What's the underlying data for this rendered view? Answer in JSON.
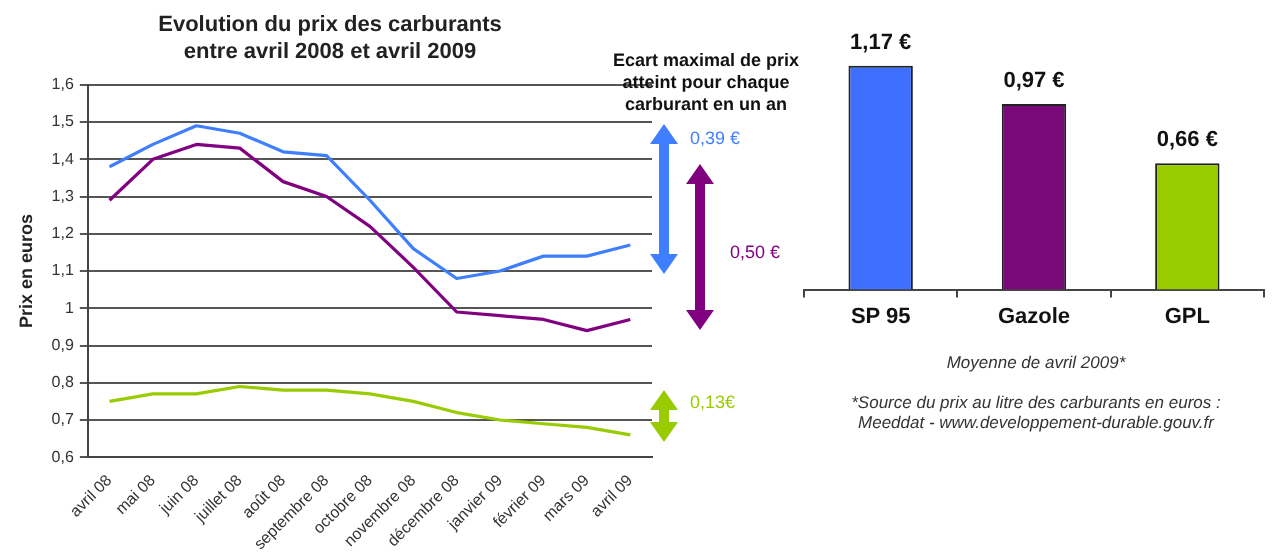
{
  "chart_data": [
    {
      "type": "line",
      "title": "Evolution du prix des carburants\nentre avril 2008 et avril 2009",
      "ylabel": "Prix en euros",
      "categories": [
        "avril 08",
        "mai 08",
        "juin 08",
        "juillet 08",
        "août 08",
        "septembre 08",
        "octobre 08",
        "novembre 08",
        "décembre 08",
        "janvier 09",
        "février 09",
        "mars 09",
        "avril 09"
      ],
      "series": [
        {
          "color": "#3f7fff",
          "values": [
            1.38,
            1.44,
            1.49,
            1.47,
            1.42,
            1.41,
            1.29,
            1.16,
            1.08,
            1.1,
            1.14,
            1.14,
            1.17
          ]
        },
        {
          "color": "#800080",
          "values": [
            1.29,
            1.4,
            1.44,
            1.43,
            1.34,
            1.3,
            1.22,
            1.11,
            0.99,
            0.98,
            0.97,
            0.94,
            0.97
          ]
        },
        {
          "color": "#99cc00",
          "values": [
            0.75,
            0.77,
            0.77,
            0.79,
            0.78,
            0.78,
            0.77,
            0.75,
            0.72,
            0.7,
            0.69,
            0.68,
            0.66
          ]
        }
      ],
      "ylim": [
        0.6,
        1.6
      ],
      "yticks": [
        {
          "value": 0.6,
          "label": "0,6"
        },
        {
          "value": 0.7,
          "label": "0,7"
        },
        {
          "value": 0.8,
          "label": "0,8"
        },
        {
          "value": 0.9,
          "label": "0,9"
        },
        1,
        {
          "value": 1.1,
          "label": "1,1"
        },
        {
          "value": 1.2,
          "label": "1,2"
        },
        {
          "value": 1.3,
          "label": "1,3"
        },
        {
          "value": 1.4,
          "label": "1,4"
        },
        {
          "value": 1.5,
          "label": "1,5"
        },
        {
          "value": 1.6,
          "label": "1,6"
        }
      ],
      "grid": "y",
      "annotations": [
        "Ecart maximal de prix atteint pour chaque carburant en un an",
        "0,39 €",
        "0,50 €",
        "0,13€"
      ]
    },
    {
      "type": "bar",
      "categories": [
        "SP 95",
        "Gazole",
        "GPL"
      ],
      "values": [
        1.17,
        0.97,
        0.66
      ],
      "colors": [
        "#3f6fff",
        "#7a0a7a",
        "#99cc00"
      ],
      "value_labels": [
        "1,17 €",
        "0,97 €",
        "0,66 €"
      ],
      "annotations": [
        "Moyenne de avril 2009*",
        "*Source du prix au litre des carburants en euros :",
        "Meeddat - www.developpement-durable.gouv.fr"
      ]
    }
  ]
}
